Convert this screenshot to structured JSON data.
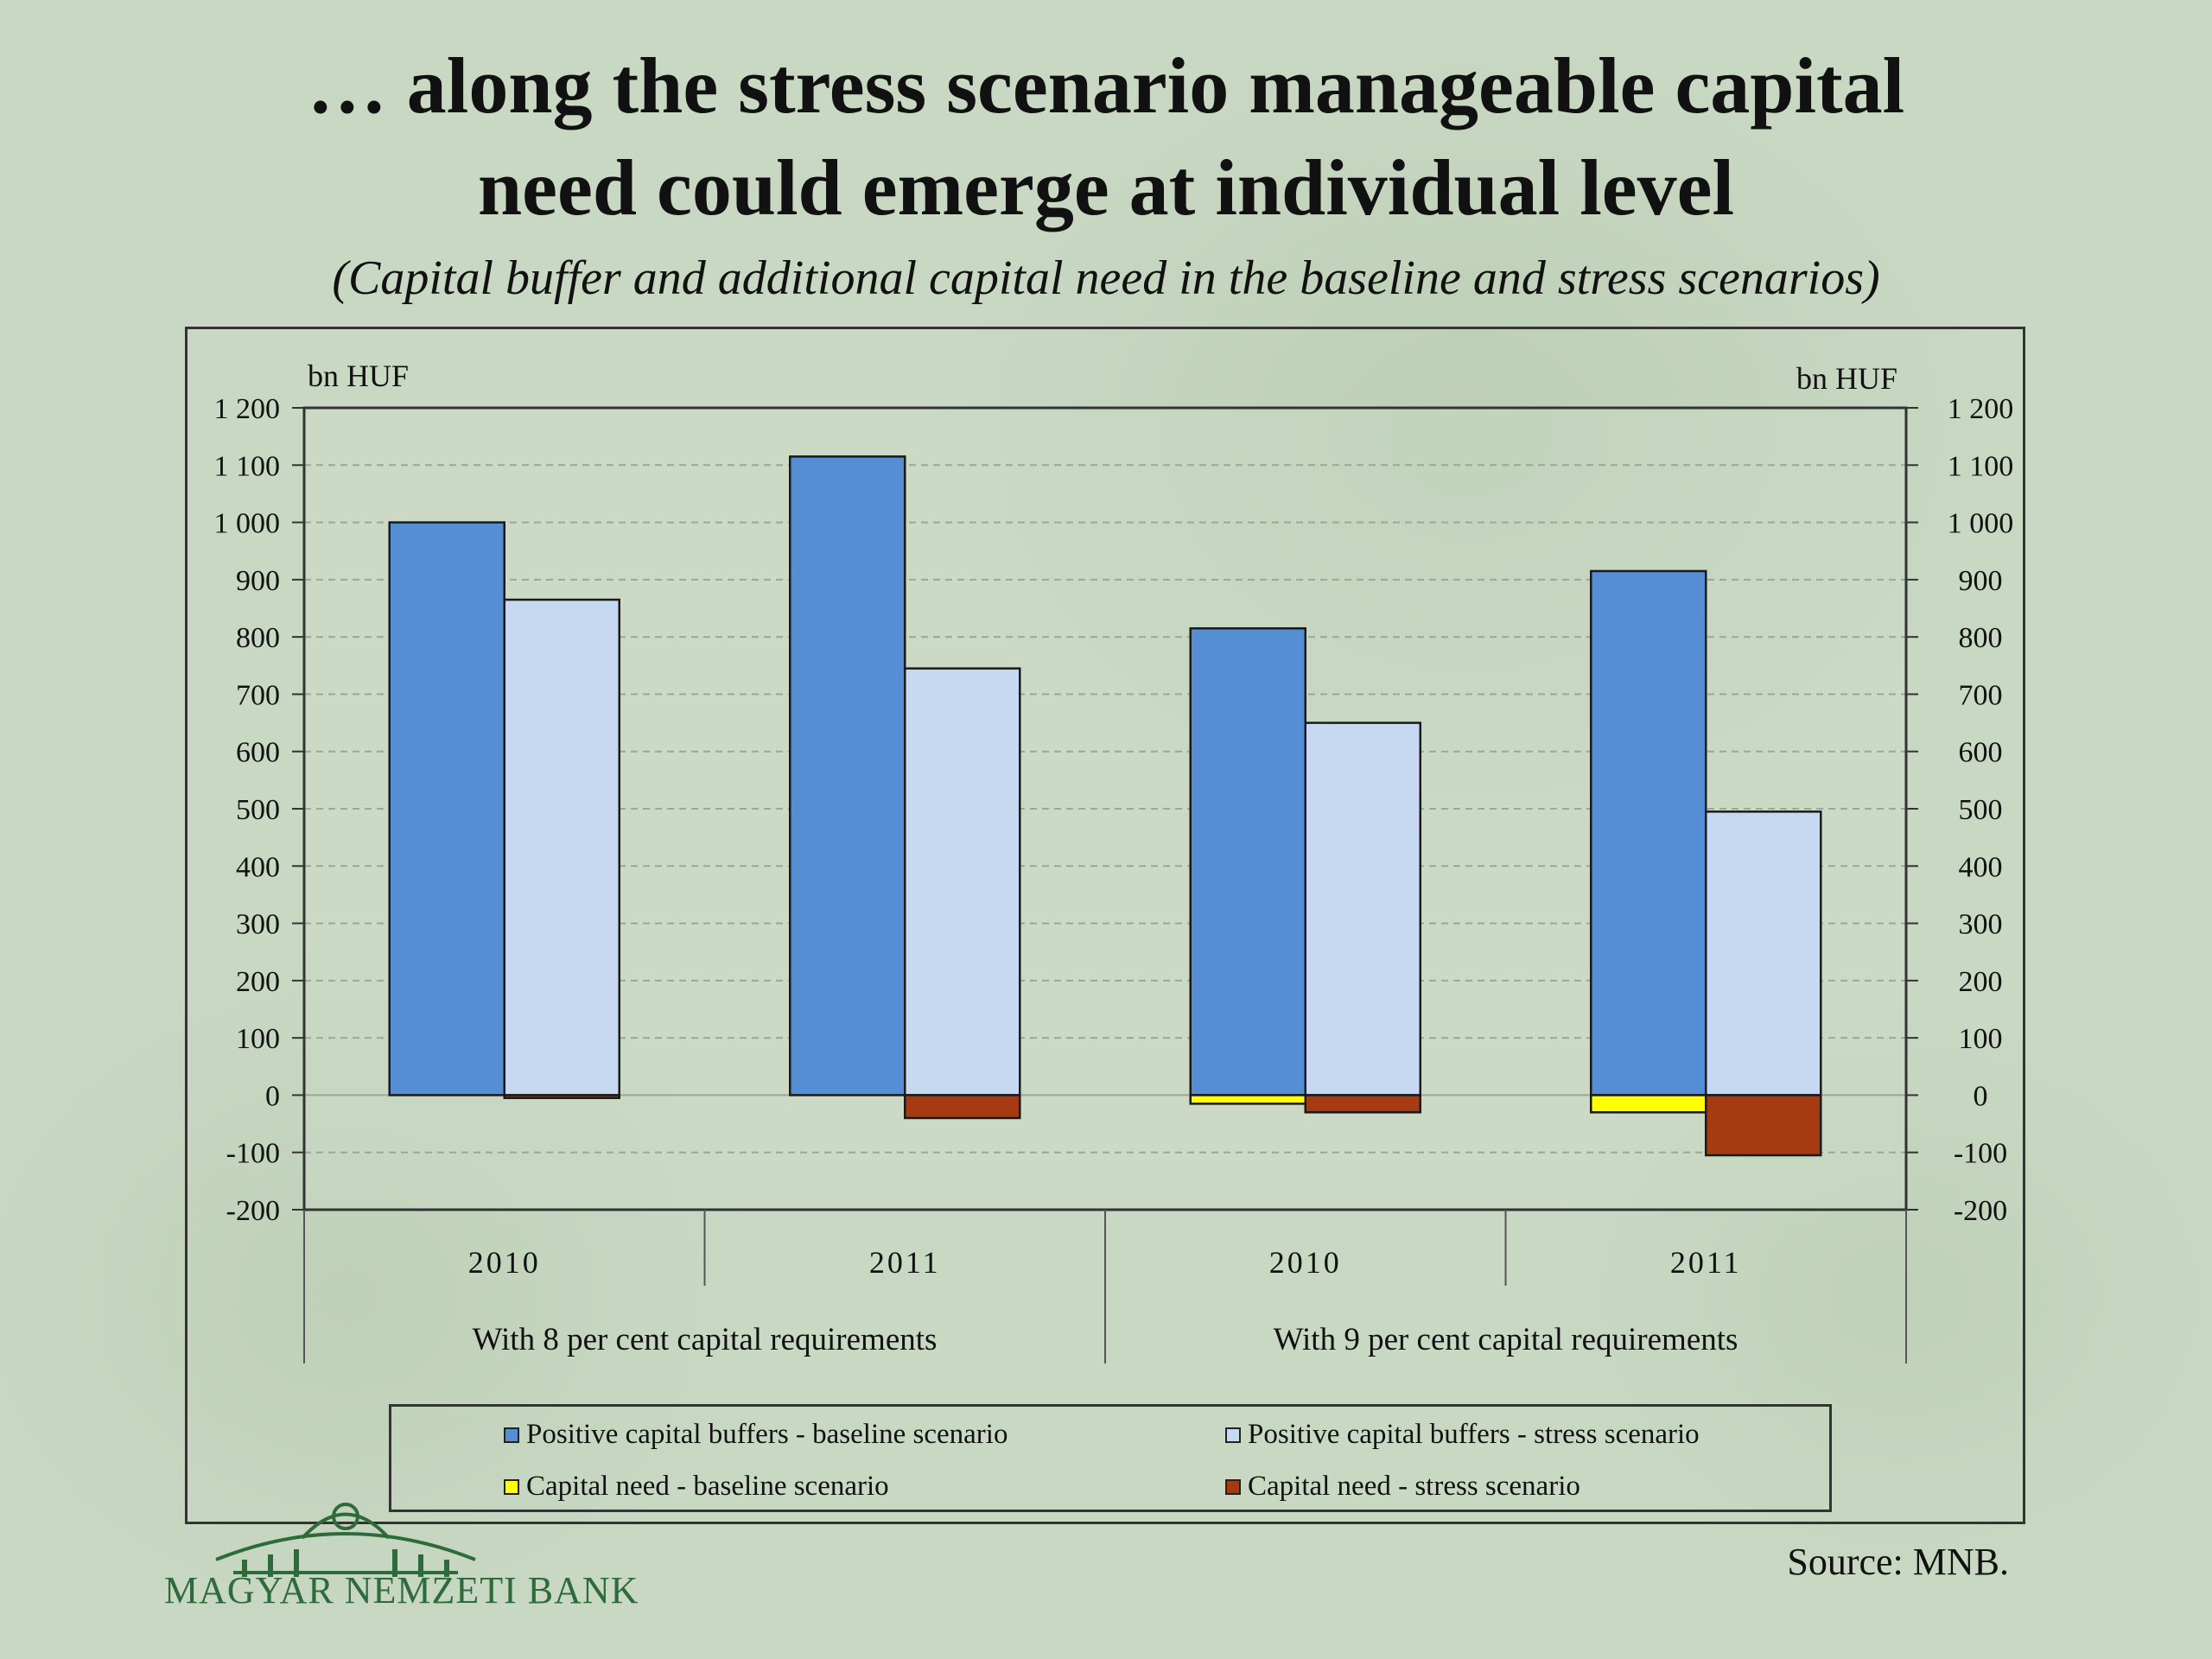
{
  "slide": {
    "title_line1": "… along the stress scenario manageable capital",
    "title_line2": "need could emerge at individual level",
    "subtitle": "(Capital buffer and additional capital need in the baseline and stress scenarios)",
    "source": "Source: MNB.",
    "logo_text": "MAGYAR NEMZETI BANK"
  },
  "chart_data": {
    "type": "bar",
    "y_unit_left": "bn HUF",
    "y_unit_right": "bn HUF",
    "ylim": [
      -200,
      1200
    ],
    "yticks": [
      -200,
      -100,
      0,
      100,
      200,
      300,
      400,
      500,
      600,
      700,
      800,
      900,
      1000,
      1100,
      1200
    ],
    "ytick_labels": [
      "-200",
      "-100",
      "0",
      "100",
      "200",
      "300",
      "400",
      "500",
      "600",
      "700",
      "800",
      "900",
      "1 000",
      "1 100",
      "1 200"
    ],
    "categories": [
      "2010",
      "2011",
      "2010",
      "2011"
    ],
    "category_groups": [
      {
        "label": "With 8 per cent capital requirements",
        "span": [
          0,
          1
        ]
      },
      {
        "label": "With 9 per cent capital requirements",
        "span": [
          2,
          3
        ]
      }
    ],
    "grid": true,
    "legend_position": "bottom",
    "series": [
      {
        "name": "Positive capital buffers - baseline scenario",
        "color": "#558ed5",
        "slot": 0,
        "values": [
          1000,
          1115,
          815,
          915
        ]
      },
      {
        "name": "Positive capital buffers - stress scenario",
        "color": "#c6d9f1",
        "slot": 1,
        "values": [
          865,
          745,
          650,
          495
        ]
      },
      {
        "name": "Capital need - baseline scenario",
        "color": "#ffff00",
        "slot": 0,
        "values": [
          0,
          0,
          -15,
          -30
        ]
      },
      {
        "name": "Capital need - stress scenario",
        "color": "#a63a10",
        "slot": 1,
        "values": [
          -5,
          -40,
          -30,
          -105
        ]
      }
    ]
  }
}
